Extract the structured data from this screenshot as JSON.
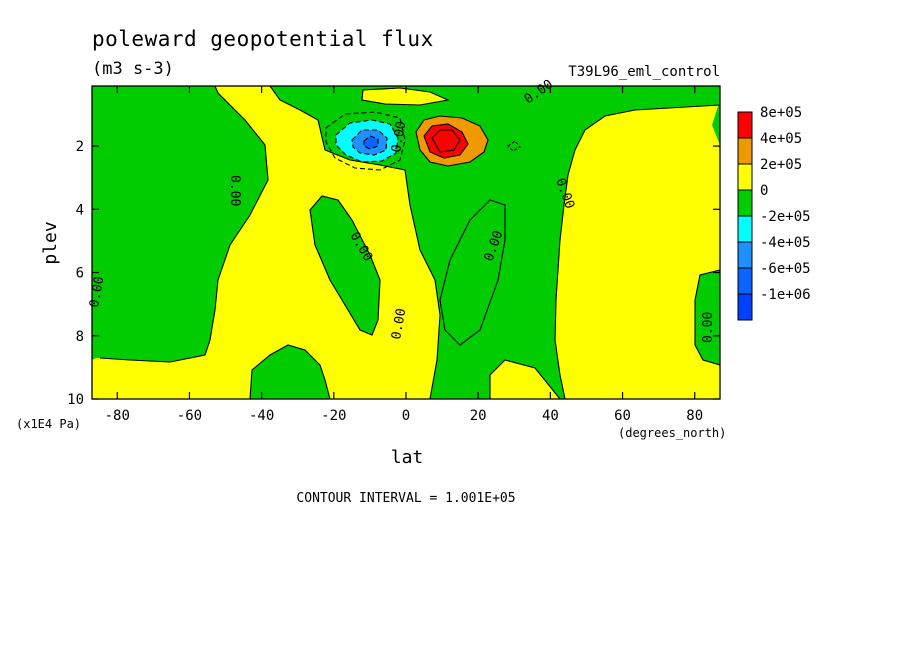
{
  "chart_data": {
    "type": "heatmap",
    "title": "poleward geopotential flux",
    "units": "(m3 s-3)",
    "run_label": "T39L96_eml_control",
    "xlabel": "lat",
    "ylabel": "plev",
    "x_unit_label": "(degrees_north)",
    "y_unit_label": "(x1E4 Pa)",
    "xlim": [
      -87,
      87
    ],
    "ylim": [
      10,
      0.1
    ],
    "x_ticks": [
      -80,
      -60,
      -40,
      -20,
      0,
      20,
      40,
      60,
      80
    ],
    "y_ticks": [
      2,
      4,
      6,
      8,
      10
    ],
    "contour_interval_text": "CONTOUR INTERVAL = 1.001E+05",
    "contour_label": "0.00",
    "grid": false,
    "legend_position": "right",
    "levels": [
      {
        "label": "8e+05",
        "color": "#ff0000"
      },
      {
        "label": "4e+05",
        "color": "#ee9a00"
      },
      {
        "label": "2e+05",
        "color": "#ffff00"
      },
      {
        "label": "0",
        "color": "#00cc00"
      },
      {
        "label": "-2e+05",
        "color": "#00ffff"
      },
      {
        "label": "-4e+05",
        "color": "#1e90ff"
      },
      {
        "label": "-6e+05",
        "color": "#0a64ff"
      },
      {
        "label": "-1e+06",
        "color": "#0040ff"
      }
    ],
    "colors": {
      "positive": "#ffff00",
      "negative": "#00cc00",
      "max_core": "#ff0000",
      "min_core": "#1e90ff"
    },
    "extrema": [
      {
        "name": "maximum",
        "lat": 10,
        "plev": 1.9,
        "value": 800000
      },
      {
        "name": "minimum",
        "lat": -11,
        "plev": 2.0,
        "value": -700000
      }
    ]
  }
}
